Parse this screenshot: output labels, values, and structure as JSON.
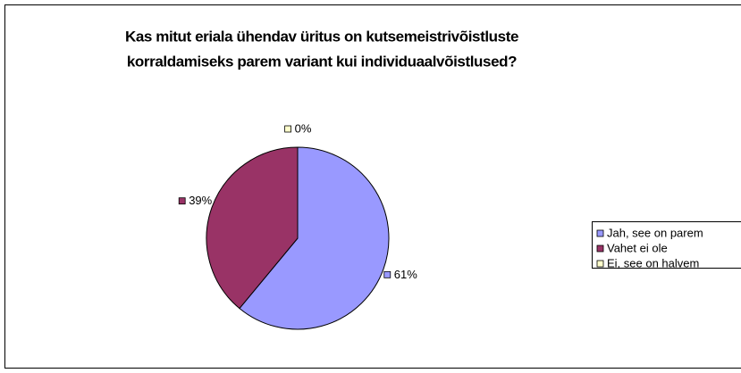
{
  "chart_data": {
    "type": "pie",
    "title": [
      "Kas mitut eriala ühendav üritus on kutsemeistrivõistluste",
      "korraldamiseks parem variant kui individuaalvõistlused?"
    ],
    "categories": [
      "Jah, see on parem",
      "Vahet ei ole",
      "Ei, see on halvem"
    ],
    "values": [
      61,
      39,
      0
    ],
    "value_labels": [
      "61%",
      "39%",
      "0%"
    ],
    "colors": [
      "#9999ff",
      "#993366",
      "#ffffcc"
    ],
    "legend": "right"
  }
}
